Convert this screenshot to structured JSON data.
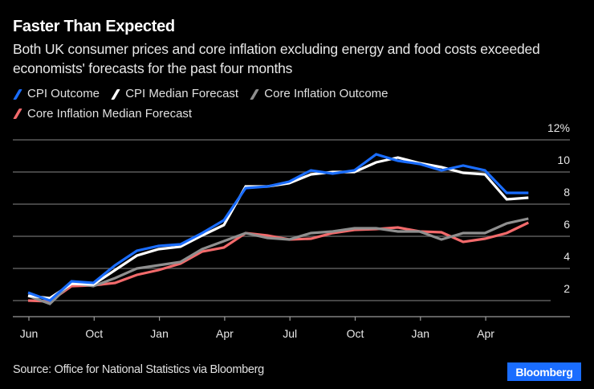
{
  "header": {
    "title": "Faster Than Expected",
    "subtitle": "Both UK consumer prices and core inflation excluding energy and food costs exceeded economists' forecasts for the past four months"
  },
  "footer": {
    "source": "Source: Office for National Statistics via Bloomberg",
    "brand": "Bloomberg",
    "brand_color": "#1a6dff"
  },
  "chart_data": {
    "type": "line",
    "title": "Faster Than Expected",
    "subtitle": "Both UK consumer prices and core inflation excluding energy and food costs exceeded economists' forecasts for the past four months",
    "xlabel": "",
    "ylabel": "",
    "ylim": [
      1,
      12
    ],
    "y_ticks": [
      2,
      4,
      6,
      8,
      10,
      12
    ],
    "y_tick_labels": [
      "2",
      "4",
      "6",
      "8",
      "10",
      "12%"
    ],
    "y_axis_side": "right",
    "grid": true,
    "legend_position": "top-left",
    "x": [
      "Jun",
      "Jul",
      "Aug",
      "Sep",
      "Oct",
      "Nov",
      "Dec",
      "Jan",
      "Feb",
      "Mar",
      "Apr",
      "May",
      "Jun",
      "Jul",
      "Aug",
      "Sep",
      "Oct",
      "Nov",
      "Dec",
      "Jan",
      "Feb",
      "Mar",
      "Apr",
      "May"
    ],
    "x_ticks": [
      {
        "index": 0,
        "label": "Jun"
      },
      {
        "index": 3,
        "label": "Oct"
      },
      {
        "index": 6,
        "label": "Jan"
      },
      {
        "index": 9,
        "label": "Apr"
      },
      {
        "index": 12,
        "label": "Jul"
      },
      {
        "index": 15,
        "label": "Oct"
      },
      {
        "index": 18,
        "label": "Jan"
      },
      {
        "index": 21,
        "label": "Apr"
      }
    ],
    "series": [
      {
        "name": "Core Inflation Median Forecast",
        "color": "#f26a6b",
        "values": [
          2.0,
          1.95,
          2.9,
          2.95,
          3.1,
          3.6,
          3.9,
          4.3,
          5.05,
          5.3,
          6.2,
          6.05,
          5.8,
          5.85,
          6.2,
          6.4,
          6.45,
          6.55,
          6.3,
          6.25,
          5.65,
          5.85,
          6.2,
          6.85
        ]
      },
      {
        "name": "Core Inflation Outcome",
        "color": "#8f8f8f",
        "values": [
          2.3,
          1.8,
          3.1,
          2.9,
          3.4,
          4.0,
          4.2,
          4.4,
          5.2,
          5.7,
          6.2,
          5.9,
          5.8,
          6.2,
          6.3,
          6.5,
          6.5,
          6.3,
          6.3,
          5.8,
          6.2,
          6.2,
          6.8,
          7.1
        ]
      },
      {
        "name": "CPI Median Forecast",
        "color": "#ffffff",
        "values": [
          2.3,
          2.15,
          3.05,
          3.0,
          3.9,
          4.8,
          5.2,
          5.35,
          6.05,
          6.7,
          9.1,
          9.1,
          9.3,
          9.85,
          10.0,
          10.0,
          10.6,
          10.9,
          10.55,
          10.3,
          9.95,
          9.85,
          8.3,
          8.4
        ]
      },
      {
        "name": "CPI Outcome",
        "color": "#1a6dff",
        "values": [
          2.5,
          2.0,
          3.2,
          3.1,
          4.2,
          5.1,
          5.4,
          5.5,
          6.2,
          7.0,
          9.0,
          9.1,
          9.4,
          10.1,
          9.9,
          10.1,
          11.1,
          10.7,
          10.5,
          10.1,
          10.4,
          10.1,
          8.7,
          8.7
        ]
      }
    ]
  },
  "legend": [
    {
      "label": "CPI Outcome",
      "color": "#1a6dff"
    },
    {
      "label": "CPI Median Forecast",
      "color": "#ffffff"
    },
    {
      "label": "Core Inflation Outcome",
      "color": "#8f8f8f"
    },
    {
      "label": "Core Inflation Median Forecast",
      "color": "#f26a6b"
    }
  ]
}
